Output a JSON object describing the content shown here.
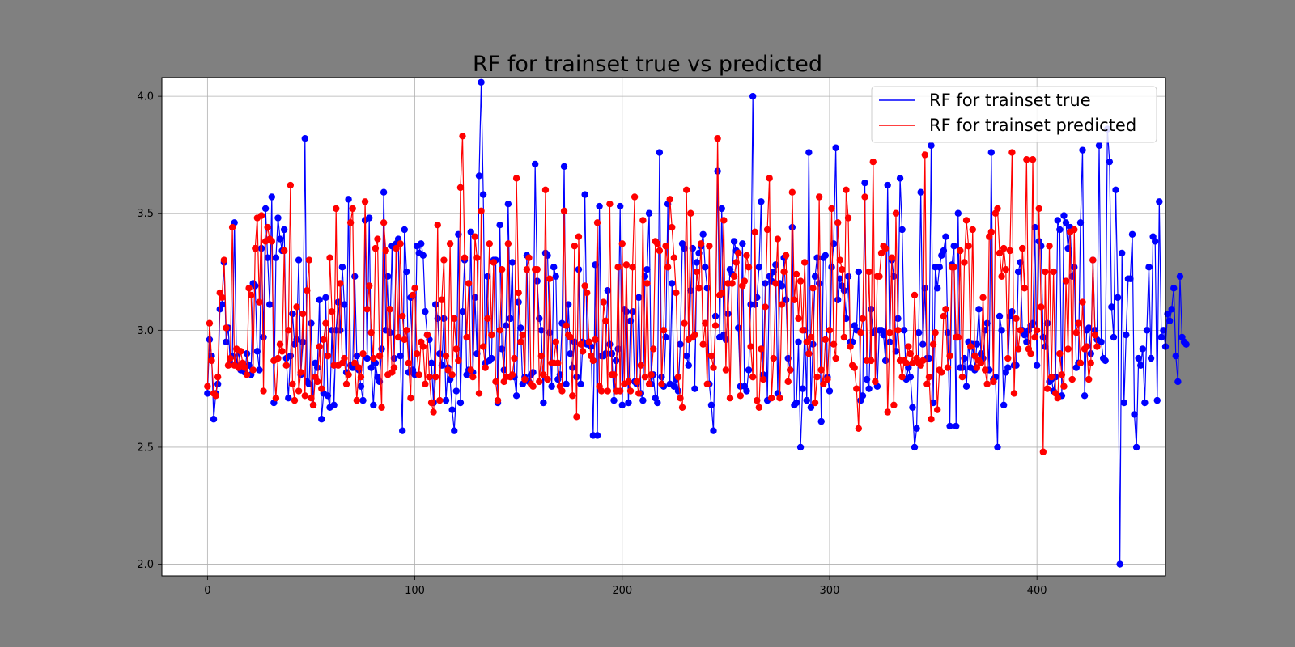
{
  "chart_data": {
    "type": "line",
    "title": "RF for trainset true vs predicted",
    "xlabel": "",
    "ylabel": "",
    "xlim": [
      -22,
      462
    ],
    "ylim": [
      1.95,
      4.08
    ],
    "xticks": [
      0,
      100,
      200,
      300,
      400
    ],
    "yticks": [
      2.0,
      2.5,
      3.0,
      3.5,
      4.0
    ],
    "xtick_labels": [
      "0",
      "100",
      "200",
      "300",
      "400"
    ],
    "ytick_labels": [
      "2.0",
      "2.5",
      "3.0",
      "3.5",
      "4.0"
    ],
    "grid": true,
    "legend_position": "top-right",
    "marker": "circle",
    "series": [
      {
        "name": "RF for trainset true",
        "color": "#0000ff",
        "values": [
          2.73,
          2.96,
          2.89,
          2.62,
          2.73,
          2.77,
          3.09,
          3.11,
          3.29,
          2.95,
          3.01,
          2.86,
          2.89,
          3.46,
          2.85,
          2.91,
          2.83,
          2.84,
          2.82,
          2.9,
          2.85,
          2.81,
          3.2,
          3.19,
          2.91,
          2.83,
          3.35,
          2.97,
          3.52,
          3.31,
          3.11,
          3.57,
          2.69,
          3.31,
          3.48,
          3.39,
          3.34,
          3.43,
          2.88,
          2.71,
          2.89,
          3.07,
          2.94,
          2.96,
          3.3,
          2.81,
          2.95,
          3.82,
          2.78,
          2.77,
          3.03,
          2.68,
          2.86,
          2.84,
          3.13,
          2.62,
          2.73,
          3.14,
          2.72,
          2.67,
          3.0,
          2.68,
          3.0,
          3.12,
          3.0,
          3.27,
          3.11,
          2.82,
          3.56,
          2.85,
          2.84,
          3.23,
          2.89,
          2.83,
          2.76,
          2.7,
          3.47,
          2.88,
          3.48,
          2.84,
          2.68,
          2.86,
          2.8,
          2.78,
          2.92,
          3.59,
          3.0,
          3.23,
          2.99,
          3.36,
          2.88,
          3.37,
          3.39,
          2.89,
          2.57,
          3.43,
          3.25,
          2.82,
          3.14,
          2.83,
          2.81,
          3.36,
          3.33,
          3.37,
          3.32,
          3.08,
          2.98,
          2.96,
          2.86,
          2.69,
          3.11,
          3.05,
          2.9,
          2.85,
          3.05,
          2.7,
          2.84,
          2.79,
          2.66,
          2.57,
          2.74,
          3.41,
          2.69,
          3.08,
          3.3,
          2.81,
          2.83,
          3.42,
          2.82,
          3.14,
          2.9,
          3.66,
          4.06,
          3.58,
          2.86,
          3.23,
          2.87,
          2.88,
          3.3,
          3.3,
          2.69,
          3.45,
          2.92,
          2.83,
          3.02,
          3.54,
          3.05,
          3.29,
          2.8,
          2.72,
          3.12,
          3.01,
          2.77,
          2.8,
          3.32,
          2.78,
          2.81,
          2.82,
          3.71,
          3.21,
          3.05,
          3.0,
          2.69,
          3.33,
          3.32,
          2.99,
          2.76,
          3.27,
          3.23,
          2.79,
          2.81,
          3.03,
          3.7,
          2.77,
          3.11,
          2.9,
          2.84,
          2.95,
          2.8,
          3.26,
          2.77,
          2.95,
          3.58,
          2.94,
          2.95,
          2.93,
          2.55,
          3.28,
          2.55,
          3.53,
          2.89,
          2.89,
          2.9,
          3.17,
          2.94,
          2.9,
          2.7,
          2.87,
          2.92,
          3.53,
          2.68,
          3.09,
          3.08,
          2.69,
          3.04,
          3.08,
          2.78,
          2.77,
          3.14,
          2.73,
          2.7,
          3.23,
          3.26,
          3.5,
          2.77,
          2.81,
          2.71,
          2.69,
          3.76,
          2.8,
          2.76,
          2.97,
          3.54,
          2.77,
          3.2,
          2.76,
          2.79,
          2.74,
          2.94,
          3.37,
          3.35,
          2.89,
          2.85,
          3.17,
          3.35,
          2.75,
          3.29,
          3.33,
          3.36,
          3.41,
          3.27,
          3.18,
          2.77,
          2.68,
          2.57,
          3.06,
          3.68,
          2.97,
          3.52,
          2.98,
          2.96,
          3.07,
          3.26,
          3.24,
          3.38,
          3.34,
          3.01,
          2.76,
          3.37,
          2.76,
          2.74,
          2.83,
          3.11,
          4.0,
          3.11,
          3.14,
          3.27,
          3.55,
          2.81,
          3.2,
          2.7,
          3.23,
          3.21,
          3.25,
          3.28,
          2.73,
          3.2,
          3.19,
          3.31,
          3.13,
          2.88,
          2.83,
          3.44,
          2.68,
          2.69,
          2.95,
          2.5,
          2.75,
          3.0,
          2.7,
          3.76,
          2.67,
          2.94,
          3.23,
          3.31,
          3.2,
          2.61,
          3.31,
          3.32,
          2.8,
          2.74,
          3.27,
          3.37,
          3.78,
          3.13,
          3.22,
          3.19,
          3.17,
          3.05,
          3.23,
          2.95,
          2.95,
          3.02,
          3.0,
          3.25,
          2.7,
          2.72,
          3.63,
          2.79,
          2.75,
          3.09,
          2.99,
          3.0,
          2.76,
          3.0,
          3.0,
          2.98,
          2.87,
          3.62,
          2.95,
          3.3,
          3.23,
          2.91,
          3.05,
          3.65,
          3.43,
          3.0,
          2.79,
          2.84,
          2.8,
          2.67,
          2.5,
          2.58,
          2.99,
          3.59,
          2.94,
          3.18,
          2.88,
          2.88,
          3.79,
          2.69,
          3.27,
          3.18,
          3.27,
          3.32,
          3.34,
          3.4,
          2.99,
          2.59,
          3.28,
          3.36,
          2.59,
          3.5,
          2.84,
          2.84,
          2.88,
          2.76,
          2.95,
          2.84,
          2.94,
          2.83,
          2.94,
          3.09,
          2.9,
          2.88,
          3.0,
          3.03,
          2.83,
          3.76,
          2.79,
          2.8,
          2.5,
          3.06,
          3.0,
          2.68,
          2.82,
          2.84,
          3.06,
          3.08,
          2.85,
          2.85,
          3.25,
          3.29,
          3.0,
          2.98,
          2.95,
          3.0,
          3.02,
          3.03,
          3.44,
          2.85,
          3.38,
          3.36,
          2.97,
          2.93,
          3.03,
          2.78,
          2.79,
          2.74,
          2.8,
          3.47,
          3.43,
          2.72,
          3.49,
          3.46,
          3.35,
          3.44,
          3.23,
          3.27,
          2.84,
          2.86,
          3.46,
          3.77,
          2.72,
          3.0,
          3.01,
          2.9,
          3.3,
          3.0,
          2.96,
          3.79,
          2.95,
          2.88,
          2.87,
          3.86,
          3.72,
          3.1,
          2.97,
          3.6,
          3.14,
          2.0,
          3.33,
          2.69,
          2.98,
          3.22,
          3.22,
          3.41,
          2.64,
          2.5,
          2.88,
          2.85,
          2.92,
          2.69,
          3.0,
          3.27,
          2.88,
          3.4,
          3.38,
          2.7,
          3.55,
          2.97,
          3.0,
          2.93,
          3.07,
          3.04,
          3.09,
          3.18,
          2.89,
          2.78,
          3.23,
          2.97,
          2.95,
          2.94
        ]
      },
      {
        "name": "RF for trainset predicted",
        "color": "#ff0000",
        "values": [
          2.76,
          3.03,
          2.87,
          2.73,
          2.72,
          2.8,
          3.16,
          3.14,
          3.3,
          3.01,
          2.85,
          2.88,
          3.44,
          2.85,
          2.92,
          2.84,
          2.91,
          2.86,
          2.84,
          2.81,
          3.18,
          3.15,
          2.83,
          3.35,
          3.48,
          3.12,
          3.49,
          2.74,
          3.38,
          3.44,
          3.39,
          3.38,
          2.87,
          2.71,
          2.88,
          2.94,
          2.91,
          3.34,
          2.85,
          3.0,
          3.62,
          2.77,
          2.7,
          3.1,
          2.74,
          2.82,
          3.07,
          2.72,
          3.17,
          3.3,
          2.71,
          2.68,
          2.8,
          2.78,
          2.93,
          2.75,
          2.96,
          3.03,
          2.89,
          3.31,
          3.08,
          2.85,
          3.52,
          2.85,
          3.2,
          2.86,
          2.88,
          2.77,
          2.81,
          3.46,
          3.52,
          2.86,
          2.7,
          2.84,
          2.8,
          2.9,
          3.55,
          3.09,
          3.19,
          2.99,
          2.88,
          3.35,
          3.39,
          2.89,
          2.67,
          3.46,
          3.34,
          2.81,
          3.09,
          2.82,
          2.84,
          3.35,
          2.97,
          3.37,
          3.06,
          2.96,
          3.0,
          2.86,
          2.71,
          3.15,
          3.18,
          2.9,
          2.81,
          2.95,
          2.93,
          2.77,
          2.98,
          2.8,
          2.69,
          2.65,
          2.8,
          3.45,
          2.7,
          3.13,
          3.3,
          2.89,
          2.83,
          3.37,
          2.81,
          3.05,
          2.92,
          2.87,
          3.61,
          3.83,
          3.31,
          2.97,
          3.2,
          2.83,
          2.8,
          3.4,
          3.31,
          2.73,
          3.51,
          2.93,
          2.84,
          3.05,
          3.37,
          2.98,
          3.29,
          2.78,
          2.7,
          3.0,
          3.26,
          2.78,
          2.8,
          3.37,
          2.8,
          2.81,
          2.88,
          3.65,
          3.16,
          2.95,
          2.98,
          2.79,
          3.26,
          3.31,
          2.77,
          2.76,
          3.26,
          3.26,
          2.78,
          2.89,
          2.81,
          3.6,
          2.79,
          3.22,
          2.86,
          2.86,
          2.95,
          2.86,
          2.76,
          2.74,
          3.51,
          3.02,
          2.98,
          2.97,
          2.72,
          3.36,
          2.63,
          3.4,
          2.94,
          2.91,
          3.19,
          3.16,
          2.95,
          2.89,
          2.87,
          2.96,
          3.46,
          2.76,
          2.74,
          3.12,
          3.04,
          2.74,
          3.54,
          2.81,
          2.81,
          2.74,
          3.27,
          2.74,
          3.37,
          2.77,
          3.28,
          2.78,
          2.74,
          3.27,
          3.57,
          2.78,
          2.73,
          2.85,
          3.47,
          2.8,
          3.2,
          2.77,
          2.81,
          2.92,
          3.38,
          3.37,
          3.34,
          2.77,
          3.0,
          3.36,
          3.27,
          3.56,
          3.44,
          3.31,
          3.16,
          2.8,
          2.71,
          2.67,
          3.03,
          3.6,
          2.96,
          3.5,
          2.97,
          2.98,
          3.25,
          3.18,
          3.37,
          2.94,
          3.03,
          2.77,
          3.36,
          2.89,
          2.84,
          3.02,
          3.82,
          3.15,
          3.16,
          3.47,
          2.83,
          3.2,
          2.71,
          3.2,
          3.23,
          3.29,
          3.33,
          2.72,
          3.19,
          3.21,
          3.32,
          3.27,
          2.93,
          2.8,
          3.42,
          2.7,
          2.67,
          2.92,
          2.79,
          3.1,
          3.43,
          3.65,
          2.71,
          2.88,
          3.2,
          3.39,
          2.71,
          3.11,
          3.25,
          3.32,
          2.78,
          2.83,
          3.59,
          3.13,
          3.24,
          3.05,
          3.21,
          3.0,
          3.29,
          2.95,
          2.9,
          2.97,
          3.18,
          2.69,
          2.8,
          3.57,
          2.83,
          2.77,
          2.96,
          2.79,
          3.0,
          3.52,
          2.94,
          2.88,
          3.46,
          3.3,
          3.26,
          2.97,
          3.6,
          3.48,
          2.93,
          2.85,
          2.84,
          2.75,
          2.58,
          2.99,
          3.05,
          3.57,
          2.87,
          3.25,
          2.87,
          3.72,
          2.78,
          3.23,
          3.23,
          3.33,
          3.36,
          3.35,
          2.65,
          2.99,
          3.31,
          2.68,
          3.5,
          3.0,
          2.87,
          2.8,
          2.87,
          2.86,
          2.93,
          2.9,
          2.86,
          3.15,
          2.88,
          2.86,
          2.85,
          2.87,
          3.75,
          2.77,
          2.8,
          2.62,
          2.94,
          2.99,
          2.66,
          2.83,
          2.82,
          3.06,
          3.09,
          2.84,
          2.89,
          3.27,
          3.27,
          2.97,
          2.97,
          3.34,
          2.8,
          3.29,
          3.47,
          3.36,
          2.93,
          3.43,
          2.89,
          2.84,
          2.87,
          2.86,
          3.14,
          2.83,
          2.77,
          3.4,
          3.42,
          2.78,
          3.5,
          3.52,
          3.33,
          3.23,
          3.35,
          3.26,
          2.88,
          3.34,
          3.76,
          2.73,
          3.05,
          2.92,
          3.0,
          3.35,
          3.18,
          3.73,
          2.92,
          2.9,
          3.73,
          2.97,
          3.0,
          3.52,
          3.1,
          2.48,
          3.25,
          2.75,
          3.36,
          2.8,
          3.25,
          2.73,
          2.71,
          2.9,
          2.81,
          2.76,
          3.21,
          2.92,
          3.42,
          2.79,
          3.43,
          2.99,
          3.03,
          2.86,
          3.12,
          2.92,
          2.93,
          2.79,
          2.86,
          3.3,
          2.98,
          2.93
        ]
      }
    ]
  }
}
